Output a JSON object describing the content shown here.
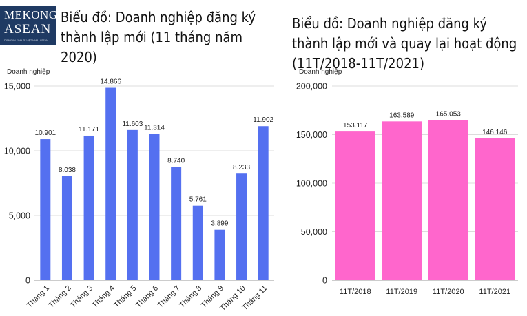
{
  "logo": {
    "line1": "MEKONG",
    "line2": "ASEAN",
    "tagline": "DIỄN ĐÀN KINH TẾ VIỆT NAM - ASEAN"
  },
  "chart_data": [
    {
      "type": "bar",
      "title": "Biểu đồ: Doanh nghiệp đăng ký thành lập mới (11 tháng năm 2020)",
      "ylabel": "Doanh nghiệp",
      "categories": [
        "Tháng 1",
        "Tháng 2",
        "Tháng 3",
        "Tháng 4",
        "Tháng 5",
        "Tháng 6",
        "Tháng 7",
        "Tháng 8",
        "Tháng 9",
        "Tháng 10",
        "Tháng 11"
      ],
      "values": [
        10901,
        8038,
        11171,
        14866,
        11603,
        11314,
        8740,
        5761,
        3899,
        8233,
        11902
      ],
      "value_labels": [
        "10.901",
        "8.038",
        "11.171",
        "14.866",
        "11.603",
        "11.314",
        "8.740",
        "5.761",
        "3.899",
        "8.233",
        "11.902"
      ],
      "yticks": [
        0,
        5000,
        10000,
        15000
      ],
      "ytick_labels": [
        "0",
        "5,000",
        "10,000",
        "15,000"
      ],
      "ylim": [
        0,
        15000
      ],
      "grid": true,
      "color": "#5470f0"
    },
    {
      "type": "bar",
      "title": "Biểu đồ: Doanh nghiệp đăng ký thành lập mới và quay lại hoạt động (11T/2018-11T/2021)",
      "ylabel": "Doanh nghiệp",
      "categories": [
        "11T/2018",
        "11T/2019",
        "11T/2020",
        "11T/2021"
      ],
      "values": [
        153117,
        163589,
        165053,
        146146
      ],
      "value_labels": [
        "153.117",
        "163.589",
        "165.053",
        "146.146"
      ],
      "yticks": [
        0,
        50000,
        100000,
        150000,
        200000
      ],
      "ytick_labels": [
        "0",
        "50,000",
        "100,000",
        "150,000",
        "200,000"
      ],
      "ylim": [
        0,
        200000
      ],
      "grid": true,
      "color": "#ff66cc"
    }
  ]
}
